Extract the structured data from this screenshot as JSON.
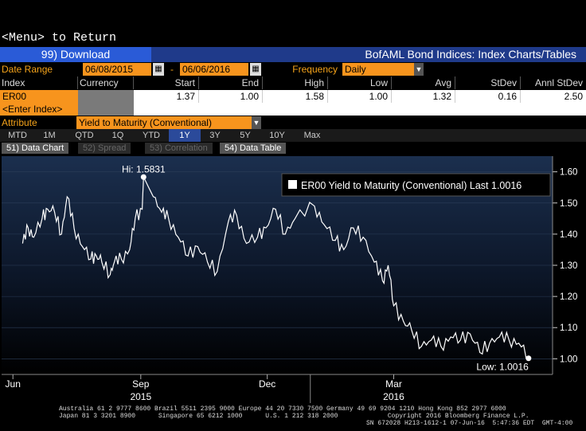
{
  "menu_line": "<Menu> to Return",
  "toolbar": {
    "download_label": "99) Download",
    "title": "BofAML Bond Indices: Index Charts/Tables"
  },
  "date_range": {
    "label": "Date Range",
    "start": "06/08/2015",
    "dash": "-",
    "end": "06/06/2016"
  },
  "frequency": {
    "label": "Frequency",
    "value": "Daily"
  },
  "table": {
    "headers": [
      "Index",
      "Currency",
      "Start",
      "End",
      "High",
      "Low",
      "Avg",
      "StDev",
      "Annl StDev"
    ],
    "row": {
      "index": "ER00",
      "start": "1.37",
      "end": "1.00",
      "high": "1.58",
      "low": "1.00",
      "avg": "1.32",
      "stdev": "0.16",
      "annl_stdev": "2.50"
    },
    "enter_index": "<Enter Index>"
  },
  "attribute": {
    "label": "Attribute",
    "value": "Yield to Maturity (Conventional)"
  },
  "periods": [
    "MTD",
    "1M",
    "QTD",
    "1Q",
    "YTD",
    "1Y",
    "3Y",
    "5Y",
    "10Y",
    "Max"
  ],
  "active_period": "1Y",
  "tabs": [
    {
      "label": "51) Data Chart",
      "active": true
    },
    {
      "label": "52) Spread",
      "active": false
    },
    {
      "label": "53) Correlation",
      "active": false
    },
    {
      "label": "54) Data Table",
      "active": true
    }
  ],
  "footer": {
    "line1": "Australia 61 2 9777 8600 Brazil 5511 2395 9000 Europe 44 20 7330 7500 Germany 49 69 9204 1210 Hong Kong 852 2977 6000",
    "line2": "Japan 81 3 3201 8900      Singapore 65 6212 1000      U.S. 1 212 318 2000             Copyright 2016 Bloomberg Finance L.P.",
    "line3": "SN 672028 H213-1612-1 07-Jun-16  5:47:36 EDT  GMT-4:00"
  },
  "chart_data": {
    "type": "line",
    "legend": "ER00 Yield to Maturity (Conventional) Last 1.0016",
    "high_label": "Hi: 1.5831",
    "low_label": "Low: 1.0016",
    "high": {
      "x": "2015-09-03",
      "y": 1.5831
    },
    "low": {
      "x": "2016-06-06",
      "y": 1.0016
    },
    "ylim": [
      0.96,
      1.64
    ],
    "y_ticks": [
      "1.60",
      "1.50",
      "1.40",
      "1.30",
      "1.20",
      "1.10",
      "1.00"
    ],
    "x_month_labels": [
      {
        "label": "Jun",
        "x": "2015-06-01"
      },
      {
        "label": "Sep",
        "x": "2015-09-01"
      },
      {
        "label": "Dec",
        "x": "2015-12-01"
      },
      {
        "label": "Mar",
        "x": "2016-03-01"
      }
    ],
    "x_year_labels": [
      {
        "label": "2015",
        "x": "2015-09-01"
      },
      {
        "label": "2016",
        "x": "2016-03-01"
      }
    ],
    "series": [
      {
        "values": [
          [
            "2015-06-08",
            1.37
          ],
          [
            "2015-06-12",
            1.42
          ],
          [
            "2015-06-16",
            1.39
          ],
          [
            "2015-06-22",
            1.45
          ],
          [
            "2015-06-26",
            1.48
          ],
          [
            "2015-07-01",
            1.47
          ],
          [
            "2015-07-06",
            1.4
          ],
          [
            "2015-07-10",
            1.52
          ],
          [
            "2015-07-15",
            1.42
          ],
          [
            "2015-07-21",
            1.36
          ],
          [
            "2015-07-27",
            1.32
          ],
          [
            "2015-07-31",
            1.33
          ],
          [
            "2015-08-04",
            1.31
          ],
          [
            "2015-08-10",
            1.27
          ],
          [
            "2015-08-13",
            1.31
          ],
          [
            "2015-08-18",
            1.32
          ],
          [
            "2015-08-24",
            1.35
          ],
          [
            "2015-08-28",
            1.45
          ],
          [
            "2015-09-02",
            1.48
          ],
          [
            "2015-09-03",
            1.5831
          ],
          [
            "2015-09-10",
            1.52
          ],
          [
            "2015-09-16",
            1.47
          ],
          [
            "2015-09-21",
            1.45
          ],
          [
            "2015-09-28",
            1.39
          ],
          [
            "2015-10-05",
            1.33
          ],
          [
            "2015-10-12",
            1.36
          ],
          [
            "2015-10-19",
            1.31
          ],
          [
            "2015-10-26",
            1.28
          ],
          [
            "2015-11-03",
            1.44
          ],
          [
            "2015-11-09",
            1.46
          ],
          [
            "2015-11-16",
            1.37
          ],
          [
            "2015-11-24",
            1.39
          ],
          [
            "2015-11-30",
            1.42
          ],
          [
            "2015-12-07",
            1.48
          ],
          [
            "2015-12-14",
            1.4
          ],
          [
            "2015-12-21",
            1.45
          ],
          [
            "2016-01-04",
            1.49
          ],
          [
            "2016-01-11",
            1.43
          ],
          [
            "2016-01-19",
            1.38
          ],
          [
            "2016-01-25",
            1.35
          ],
          [
            "2016-02-01",
            1.42
          ],
          [
            "2016-02-08",
            1.39
          ],
          [
            "2016-02-16",
            1.31
          ],
          [
            "2016-02-22",
            1.25
          ],
          [
            "2016-02-26",
            1.3
          ],
          [
            "2016-03-01",
            1.17
          ],
          [
            "2016-03-08",
            1.12
          ],
          [
            "2016-03-14",
            1.09
          ],
          [
            "2016-03-21",
            1.04
          ],
          [
            "2016-03-28",
            1.06
          ],
          [
            "2016-04-04",
            1.04
          ],
          [
            "2016-04-11",
            1.07
          ],
          [
            "2016-04-18",
            1.06
          ],
          [
            "2016-04-25",
            1.08
          ],
          [
            "2016-05-02",
            1.02
          ],
          [
            "2016-05-09",
            1.05
          ],
          [
            "2016-05-16",
            1.07
          ],
          [
            "2016-05-23",
            1.06
          ],
          [
            "2016-05-30",
            1.05
          ],
          [
            "2016-06-06",
            1.0016
          ]
        ]
      }
    ]
  },
  "colors": {
    "accent_orange": "#f7941d",
    "toolbar_blue": "#1f3a8a",
    "download_blue": "#2a5bd7",
    "line": "#ffffff"
  }
}
